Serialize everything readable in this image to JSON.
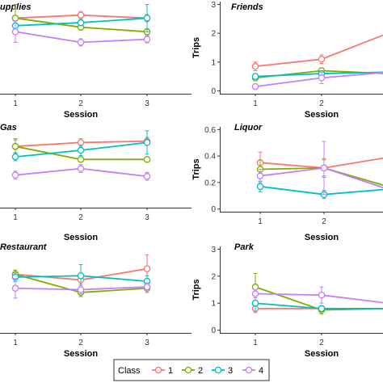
{
  "colors": {
    "series": [
      "#F8766D",
      "#7CAE00",
      "#00BFC4",
      "#C77CFF"
    ],
    "axis": "#333333"
  },
  "legend": {
    "title": "Class",
    "placement": "bottom",
    "items": [
      "1",
      "2",
      "3",
      "4"
    ]
  },
  "chart_data": [
    {
      "type": "line",
      "title": "upplies",
      "xlabel": "Session",
      "ylabel": "",
      "x": [
        1,
        2,
        3
      ],
      "xticks": [
        "1",
        "2",
        "3"
      ],
      "yticks": [],
      "ylim": [
        0,
        3.1
      ],
      "grid": false,
      "series": [
        {
          "name": "1",
          "values": [
            2.5,
            2.6,
            2.5
          ],
          "err": [
            0.3,
            0.12,
            0.12
          ]
        },
        {
          "name": "2",
          "values": [
            2.5,
            2.2,
            2.05
          ],
          "err": [
            0.45,
            0.1,
            0.1
          ]
        },
        {
          "name": "3",
          "values": [
            2.25,
            2.35,
            2.5
          ],
          "err": [
            0.15,
            0.1,
            0.45
          ]
        },
        {
          "name": "4",
          "values": [
            2.05,
            1.7,
            1.8
          ],
          "err": [
            0.35,
            0.12,
            0.12
          ]
        }
      ]
    },
    {
      "type": "line",
      "title": "Friends",
      "xlabel": "Session",
      "ylabel": "Trips",
      "x": [
        1,
        2,
        3
      ],
      "xticks": [
        "1",
        "2",
        ""
      ],
      "yticks": [
        0,
        1,
        2,
        3
      ],
      "ylim": [
        -0.1,
        3.1
      ],
      "grid": false,
      "series": [
        {
          "name": "1",
          "values": [
            0.85,
            1.1,
            2.0
          ],
          "err": [
            0.15,
            0.15,
            0.1
          ]
        },
        {
          "name": "2",
          "values": [
            0.45,
            0.7,
            0.6
          ],
          "err": [
            0.1,
            0.1,
            0.1
          ]
        },
        {
          "name": "3",
          "values": [
            0.5,
            0.6,
            0.65
          ],
          "err": [
            0.1,
            0.1,
            0.1
          ]
        },
        {
          "name": "4",
          "values": [
            0.15,
            0.45,
            0.65
          ],
          "err": [
            0.1,
            0.2,
            0.1
          ]
        }
      ]
    },
    {
      "type": "line",
      "title": "Gas",
      "xlabel": "Session",
      "ylabel": "",
      "x": [
        1,
        2,
        3
      ],
      "xticks": [
        "1",
        "2",
        "3"
      ],
      "yticks": [],
      "ylim": [
        0,
        0.62
      ],
      "grid": false,
      "series": [
        {
          "name": "1",
          "values": [
            0.47,
            0.5,
            0.51
          ],
          "err": [
            0.06,
            0.03,
            0.03
          ]
        },
        {
          "name": "2",
          "values": [
            0.47,
            0.37,
            0.37
          ],
          "err": [
            0.05,
            0.02,
            0.02
          ]
        },
        {
          "name": "3",
          "values": [
            0.39,
            0.44,
            0.5
          ],
          "err": [
            0.03,
            0.04,
            0.09
          ]
        },
        {
          "name": "4",
          "values": [
            0.25,
            0.3,
            0.24
          ],
          "err": [
            0.03,
            0.03,
            0.03
          ]
        }
      ]
    },
    {
      "type": "line",
      "title": "Liquor",
      "xlabel": "Session",
      "ylabel": "Trips",
      "x": [
        1,
        2,
        3
      ],
      "xticks": [
        "1",
        "2",
        ""
      ],
      "yticks": [
        0.0,
        0.2,
        0.4,
        0.6
      ],
      "ytick_labels": [
        "0",
        "0.2",
        "0.4",
        "0.6"
      ],
      "ylim": [
        -0.02,
        0.62
      ],
      "grid": false,
      "series": [
        {
          "name": "1",
          "values": [
            0.35,
            0.31,
            0.39
          ],
          "err": [
            0.08,
            0.06,
            0.02
          ]
        },
        {
          "name": "2",
          "values": [
            0.3,
            0.31,
            0.17
          ],
          "err": [
            0.07,
            0.07,
            0.02
          ]
        },
        {
          "name": "3",
          "values": [
            0.17,
            0.11,
            0.15
          ],
          "err": [
            0.04,
            0.03,
            0.02
          ]
        },
        {
          "name": "4",
          "values": [
            0.25,
            0.31,
            0.15
          ],
          "err": [
            0.05,
            0.2,
            0.02
          ]
        }
      ]
    },
    {
      "type": "line",
      "title": "Restaurant",
      "xlabel": "Session",
      "ylabel": "",
      "x": [
        1,
        2,
        3
      ],
      "xticks": [
        "1",
        "2",
        "3"
      ],
      "yticks": [],
      "ylim": [
        0,
        3.1
      ],
      "grid": false,
      "series": [
        {
          "name": "1",
          "values": [
            2.1,
            1.9,
            2.3
          ],
          "err": [
            0.15,
            0.15,
            0.5
          ]
        },
        {
          "name": "2",
          "values": [
            2.1,
            1.45,
            1.6
          ],
          "err": [
            0.15,
            0.15,
            0.15
          ]
        },
        {
          "name": "3",
          "values": [
            2.0,
            2.05,
            1.85
          ],
          "err": [
            0.15,
            0.4,
            0.2
          ]
        },
        {
          "name": "4",
          "values": [
            1.6,
            1.55,
            1.65
          ],
          "err": [
            0.35,
            0.15,
            0.15
          ]
        }
      ]
    },
    {
      "type": "line",
      "title": "Park",
      "xlabel": "Session",
      "ylabel": "Trips",
      "x": [
        1,
        2,
        3
      ],
      "xticks": [
        "1",
        "2",
        ""
      ],
      "yticks": [
        0,
        1,
        2,
        3
      ],
      "ylim": [
        -0.1,
        3.1
      ],
      "grid": false,
      "series": [
        {
          "name": "1",
          "values": [
            0.8,
            0.8,
            0.8
          ],
          "err": [
            0.15,
            0.1,
            0.05
          ]
        },
        {
          "name": "2",
          "values": [
            1.6,
            0.75,
            0.8
          ],
          "err": [
            0.5,
            0.15,
            0.05
          ]
        },
        {
          "name": "3",
          "values": [
            1.0,
            0.8,
            0.8
          ],
          "err": [
            0.3,
            0.1,
            0.05
          ]
        },
        {
          "name": "4",
          "values": [
            1.35,
            1.3,
            1.0
          ],
          "err": [
            0.15,
            0.3,
            0.1
          ]
        }
      ]
    }
  ]
}
